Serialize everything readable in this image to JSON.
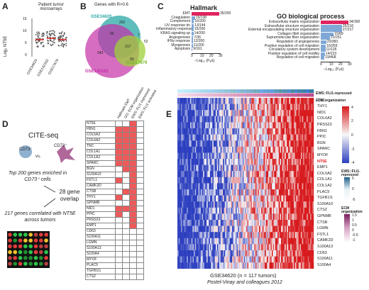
{
  "panelA": {
    "label": "A",
    "title": "Patient tumor microarrays",
    "ylabel": "Log₂ NT5E",
    "yticks": [
      "0",
      "5",
      "10",
      "15"
    ],
    "groups": [
      "GSE34620",
      "GSE142162",
      "GSE17679"
    ]
  },
  "panelB": {
    "label": "B",
    "title": "Genes with R>0.6",
    "sets": [
      {
        "name": "GSE34620",
        "color": "#2aa7a6"
      },
      {
        "name": "GSE142162",
        "color": "#c42fa6"
      },
      {
        "name": "GSE17679",
        "color": "#78b82a"
      }
    ],
    "values": {
      "only_a": "262",
      "only_b": "343",
      "only_c": "52",
      "ab": "50",
      "ac": "7",
      "bc": "69",
      "abc": "217"
    }
  },
  "panelC": {
    "label": "C",
    "left_title": "Hallmark",
    "right_title": "GO biological process",
    "left_xlabel": "−Log₁₀ (Pₐdⱼ)",
    "right_xlabel": "−Log₁₀ (Pₐdⱼ)",
    "left_ticks": [
      "0",
      "10",
      "20",
      "30"
    ],
    "right_ticks": [
      "0",
      "10",
      "20",
      "30"
    ],
    "left_rows": [
      {
        "name": "EMT",
        "val": "35/200",
        "len": 30,
        "top": true
      },
      {
        "name": "Coagulation",
        "val": "15/138",
        "len": 3.6
      },
      {
        "name": "Complement",
        "val": "16/200",
        "len": 2.6
      },
      {
        "name": "UV response dn",
        "val": "13/144",
        "len": 2.4
      },
      {
        "name": "Inflammatory response",
        "val": "15/200",
        "len": 2.2
      },
      {
        "name": "KRAS signaling up",
        "val": "14/200",
        "len": 2.0
      },
      {
        "name": "Angiogenesis",
        "val": "7/36",
        "len": 1.8
      },
      {
        "name": "IFNγ response",
        "val": "12/200",
        "len": 1.4
      },
      {
        "name": "Myogenesis",
        "val": "11/200",
        "len": 1.2
      },
      {
        "name": "Apoptosis",
        "val": "9/161",
        "len": 1.0
      }
    ],
    "right_rows": [
      {
        "name": "Extracellular matrix organization",
        "val": "34/300",
        "len": 30,
        "top": true
      },
      {
        "name": "Extracellular structure organization",
        "val": "26/216",
        "len": 23
      },
      {
        "name": "External encapsulating structure organization",
        "val": "27/217",
        "len": 23
      },
      {
        "name": "Collagen fibril organization",
        "val": "15/89",
        "len": 14
      },
      {
        "name": "Supramolecular fiber organization",
        "val": "21/251",
        "len": 10
      },
      {
        "name": "Regulation of angiogenesis",
        "val": "20/383",
        "len": 6
      },
      {
        "name": "Positive regulation of cell migration",
        "val": "16/269",
        "len": 5.5
      },
      {
        "name": "Circulatory system development",
        "val": "11/126",
        "len": 5
      },
      {
        "name": "Positive regulation of cell motility",
        "val": "14/223",
        "len": 4.5
      },
      {
        "name": "Regulation of cell migration",
        "val": "19/468",
        "len": 4
      }
    ]
  },
  "panelD": {
    "label": "D",
    "title": "CITE-seq",
    "cd_neg": "CD73⁻",
    "vs": "vs.",
    "cd_pos": "CD73⁺",
    "text1": "Top 200 genes enriched in CD73⁺ cells",
    "text2": "217 genes correlated with NT5E across tumors",
    "overlap": "28 gene overlap",
    "col_headers": [
      "Hallmark EMT",
      "GO: ECM organization",
      "EWS::FLI1 repressed",
      "EWS::FLI1 activated"
    ],
    "genes": [
      "NT5E",
      "FBN1",
      "COL5A2",
      "COL6A2",
      "TNC",
      "COL1A1",
      "COL1A2",
      "SPARC",
      "BGN",
      "S100A10",
      "FSTL1",
      "CAMK2D",
      "CTSB",
      "THY1",
      "GPNMB",
      "NID1",
      "PPIC",
      "PRSS23",
      "EMP1",
      "CD63",
      "S100A11",
      "LGMN",
      "S100A13",
      "S100A4",
      "MYOF",
      "PLAC9",
      "TGFB1I1",
      "CTSZ"
    ],
    "marks": [
      [
        0,
        0,
        1,
        0
      ],
      [
        1,
        1,
        1,
        0
      ],
      [
        1,
        1,
        1,
        0
      ],
      [
        1,
        1,
        1,
        0
      ],
      [
        1,
        1,
        1,
        0
      ],
      [
        1,
        1,
        1,
        0
      ],
      [
        1,
        1,
        1,
        0
      ],
      [
        1,
        1,
        1,
        0
      ],
      [
        0,
        1,
        1,
        0
      ],
      [
        0,
        0,
        1,
        0
      ],
      [
        1,
        0,
        1,
        0
      ],
      [
        0,
        0,
        1,
        0
      ],
      [
        0,
        1,
        1,
        0
      ],
      [
        1,
        0,
        1,
        0
      ],
      [
        0,
        0,
        1,
        0
      ],
      [
        1,
        1,
        1,
        0
      ],
      [
        1,
        0,
        1,
        0
      ],
      [
        0,
        0,
        1,
        0
      ],
      [
        0,
        0,
        1,
        0
      ],
      [
        0,
        0,
        0,
        0
      ],
      [
        0,
        0,
        0,
        0
      ],
      [
        0,
        0,
        0,
        0
      ],
      [
        0,
        0,
        0,
        0
      ],
      [
        0,
        0,
        0,
        0
      ],
      [
        0,
        0,
        0,
        0
      ],
      [
        0,
        0,
        0,
        0
      ],
      [
        0,
        0,
        0,
        0
      ],
      [
        0,
        0,
        0,
        0
      ]
    ]
  },
  "panelE": {
    "label": "E",
    "track1": "EWS::FLI1-repressed",
    "track2": "ECM organization",
    "genes": [
      "TNC",
      "THY1",
      "NID1",
      "COL6A2",
      "PRSS23",
      "FBN1",
      "PPIC",
      "BGN",
      "SPARC",
      "MYOF",
      "NT5E",
      "EMP1",
      "COL5A2",
      "COL1A1",
      "COL1A2",
      "PLAC9",
      "TGFB1I1",
      "S100A10",
      "CTSZ",
      "GPNMB",
      "CTSB",
      "LGMN",
      "FSTL1",
      "CAMK2D",
      "S100A13",
      "CD63",
      "S100A11",
      "S100A4"
    ],
    "colorbar_ticks": [
      "4",
      "2",
      "0",
      "-2",
      "-4"
    ],
    "legend1_title": "EWS::FLI1-repressed",
    "legend1_ticks": [
      "5",
      "0",
      "-5"
    ],
    "legend2_title": "ECM organization",
    "legend2_ticks": [
      "1.5",
      "1",
      "0.5",
      "0",
      "-0.5",
      "-1"
    ],
    "footer1": "GSE34620 (n = 117 tumors)",
    "footer2": "Postel-Vinay and colleagues 2012",
    "colors": {
      "red": "#d7191c",
      "blue": "#2c3fbf",
      "white": "#f7f7f7"
    }
  }
}
